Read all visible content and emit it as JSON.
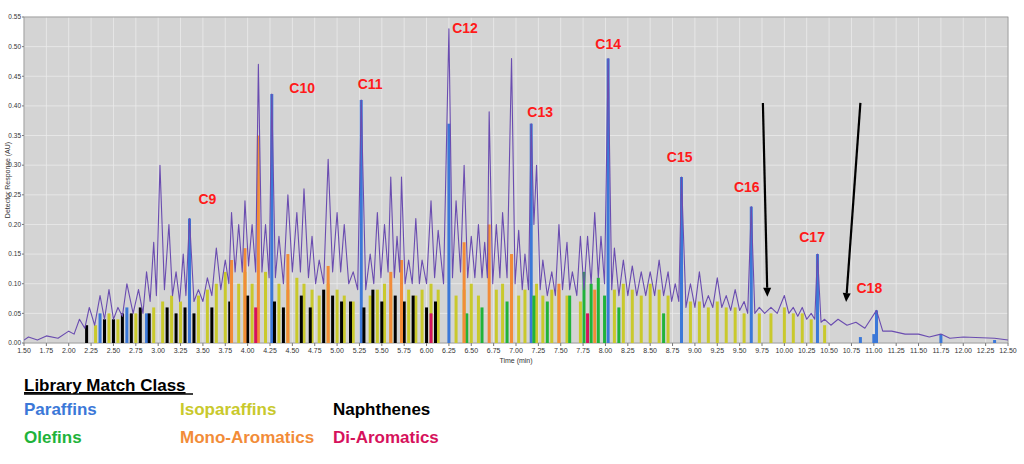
{
  "chart_data": {
    "type": "line",
    "x_label": "Time (min)",
    "y_label": "Detector Response (AU)",
    "xlim": [
      1.5,
      12.5
    ],
    "ylim": [
      0,
      0.55
    ],
    "xticks": [
      {
        "value": 1.5,
        "label": "1.50"
      },
      {
        "value": 1.75,
        "label": "1.75"
      },
      {
        "value": 2,
        "label": "2.00"
      },
      {
        "value": 2.25,
        "label": "2.25"
      },
      {
        "value": 2.5,
        "label": "2.50"
      },
      {
        "value": 2.75,
        "label": "2.75"
      },
      {
        "value": 3,
        "label": "3.00"
      },
      {
        "value": 3.25,
        "label": "3.25"
      },
      {
        "value": 3.5,
        "label": "3.50"
      },
      {
        "value": 3.75,
        "label": "3.75"
      },
      {
        "value": 4,
        "label": "4.00"
      },
      {
        "value": 4.25,
        "label": "4.25"
      },
      {
        "value": 4.5,
        "label": "4.50"
      },
      {
        "value": 4.75,
        "label": "4.75"
      },
      {
        "value": 5,
        "label": "5.00"
      },
      {
        "value": 5.25,
        "label": "5.25"
      },
      {
        "value": 5.5,
        "label": "5.50"
      },
      {
        "value": 5.75,
        "label": "5.75"
      },
      {
        "value": 6,
        "label": "6.00"
      },
      {
        "value": 6.25,
        "label": "6.25"
      },
      {
        "value": 6.5,
        "label": "6.50"
      },
      {
        "value": 6.75,
        "label": "6.75"
      },
      {
        "value": 7,
        "label": "7.00"
      },
      {
        "value": 7.25,
        "label": "7.25"
      },
      {
        "value": 7.5,
        "label": "7.50"
      },
      {
        "value": 7.75,
        "label": "7.75"
      },
      {
        "value": 8,
        "label": "8.00"
      },
      {
        "value": 8.25,
        "label": "8.25"
      },
      {
        "value": 8.5,
        "label": "8.50"
      },
      {
        "value": 8.75,
        "label": "8.75"
      },
      {
        "value": 9,
        "label": "9.00"
      },
      {
        "value": 9.25,
        "label": "9.25"
      },
      {
        "value": 9.5,
        "label": "9.50"
      },
      {
        "value": 9.75,
        "label": "9.75"
      },
      {
        "value": 10,
        "label": "10.00"
      },
      {
        "value": 10.25,
        "label": "10.25"
      },
      {
        "value": 10.5,
        "label": "10.50"
      },
      {
        "value": 10.75,
        "label": "10.75"
      },
      {
        "value": 11,
        "label": "11.00"
      },
      {
        "value": 11.25,
        "label": "11.25"
      },
      {
        "value": 11.5,
        "label": "11.50"
      },
      {
        "value": 11.75,
        "label": "11.75"
      },
      {
        "value": 12,
        "label": "12.00"
      },
      {
        "value": 12.25,
        "label": "12.25"
      },
      {
        "value": 12.5,
        "label": "12.50"
      }
    ],
    "yticks": [
      {
        "value": 0,
        "label": "0.00"
      },
      {
        "value": 0.05,
        "label": "0.05"
      },
      {
        "value": 0.1,
        "label": "0.10"
      },
      {
        "value": 0.15,
        "label": "0.15"
      },
      {
        "value": 0.2,
        "label": "0.20"
      },
      {
        "value": 0.25,
        "label": "0.25"
      },
      {
        "value": 0.3,
        "label": "0.30"
      },
      {
        "value": 0.35,
        "label": "0.35"
      },
      {
        "value": 0.4,
        "label": "0.40"
      },
      {
        "value": 0.45,
        "label": "0.45"
      },
      {
        "value": 0.5,
        "label": "0.50"
      },
      {
        "value": 0.55,
        "label": "0.55"
      }
    ],
    "grid": true,
    "legend": "bottom",
    "legend_title": "Library Match Class",
    "series": [
      {
        "type": "line",
        "color": "#6a4cb0",
        "x": [
          1.5,
          1.55,
          1.65,
          1.75,
          1.88,
          2.0,
          2.06,
          2.12,
          2.18,
          2.23,
          2.29,
          2.35,
          2.4,
          2.45,
          2.5,
          2.55,
          2.6,
          2.65,
          2.72,
          2.78,
          2.83,
          2.87,
          2.91,
          2.95,
          2.98,
          3.02,
          3.07,
          3.12,
          3.16,
          3.2,
          3.24,
          3.28,
          3.31,
          3.35,
          3.4,
          3.45,
          3.5,
          3.55,
          3.6,
          3.65,
          3.7,
          3.75,
          3.79,
          3.82,
          3.86,
          3.9,
          3.94,
          3.97,
          4.01,
          4.05,
          4.09,
          4.12,
          4.16,
          4.2,
          4.24,
          4.27,
          4.31,
          4.35,
          4.4,
          4.45,
          4.5,
          4.55,
          4.59,
          4.63,
          4.68,
          4.72,
          4.76,
          4.8,
          4.85,
          4.9,
          4.95,
          5.0,
          5.04,
          5.08,
          5.13,
          5.18,
          5.23,
          5.27,
          5.32,
          5.37,
          5.41,
          5.45,
          5.49,
          5.53,
          5.57,
          5.6,
          5.64,
          5.67,
          5.7,
          5.72,
          5.76,
          5.8,
          5.84,
          5.88,
          5.92,
          5.95,
          6.0,
          6.05,
          6.09,
          6.13,
          6.19,
          6.25,
          6.29,
          6.33,
          6.38,
          6.42,
          6.46,
          6.5,
          6.54,
          6.58,
          6.62,
          6.65,
          6.68,
          6.7,
          6.74,
          6.78,
          6.82,
          6.85,
          6.9,
          6.95,
          6.99,
          7.03,
          7.07,
          7.1,
          7.14,
          7.17,
          7.2,
          7.23,
          7.27,
          7.3,
          7.35,
          7.4,
          7.44,
          7.48,
          7.52,
          7.57,
          7.6,
          7.63,
          7.68,
          7.72,
          7.76,
          7.8,
          7.84,
          7.88,
          7.92,
          7.95,
          7.99,
          8.03,
          8.07,
          8.1,
          8.15,
          8.2,
          8.25,
          8.3,
          8.35,
          8.4,
          8.45,
          8.5,
          8.55,
          8.6,
          8.65,
          8.7,
          8.74,
          8.78,
          8.82,
          8.85,
          8.9,
          8.95,
          9.0,
          9.05,
          9.1,
          9.15,
          9.2,
          9.25,
          9.3,
          9.35,
          9.4,
          9.45,
          9.5,
          9.55,
          9.59,
          9.63,
          9.67,
          9.72,
          9.78,
          9.85,
          9.92,
          10.0,
          10.05,
          10.1,
          10.15,
          10.2,
          10.25,
          10.3,
          10.34,
          10.37,
          10.41,
          10.45,
          10.52,
          10.6,
          10.7,
          10.8,
          10.9,
          11.03,
          11.1,
          11.2,
          11.35,
          11.5,
          11.62,
          11.75,
          11.85,
          12.0,
          12.35,
          12.5
        ],
        "values": [
          0.005,
          0.01,
          0.005,
          0.012,
          0.008,
          0.02,
          0.015,
          0.04,
          0.025,
          0.06,
          0.03,
          0.08,
          0.04,
          0.09,
          0.04,
          0.06,
          0.045,
          0.1,
          0.05,
          0.09,
          0.05,
          0.12,
          0.07,
          0.17,
          0.08,
          0.3,
          0.09,
          0.2,
          0.08,
          0.12,
          0.07,
          0.15,
          0.08,
          0.21,
          0.07,
          0.09,
          0.07,
          0.11,
          0.08,
          0.16,
          0.09,
          0.14,
          0.1,
          0.22,
          0.12,
          0.2,
          0.12,
          0.24,
          0.13,
          0.2,
          0.12,
          0.47,
          0.12,
          0.2,
          0.11,
          0.42,
          0.11,
          0.18,
          0.1,
          0.25,
          0.12,
          0.22,
          0.12,
          0.26,
          0.11,
          0.18,
          0.1,
          0.14,
          0.1,
          0.31,
          0.12,
          0.22,
          0.12,
          0.2,
          0.1,
          0.12,
          0.09,
          0.41,
          0.09,
          0.15,
          0.1,
          0.22,
          0.11,
          0.2,
          0.12,
          0.28,
          0.11,
          0.18,
          0.12,
          0.28,
          0.1,
          0.14,
          0.1,
          0.21,
          0.1,
          0.14,
          0.1,
          0.24,
          0.11,
          0.19,
          0.1,
          0.53,
          0.11,
          0.24,
          0.12,
          0.3,
          0.11,
          0.18,
          0.11,
          0.2,
          0.11,
          0.17,
          0.11,
          0.39,
          0.1,
          0.2,
          0.11,
          0.22,
          0.11,
          0.48,
          0.1,
          0.19,
          0.09,
          0.15,
          0.09,
          0.37,
          0.2,
          0.3,
          0.09,
          0.14,
          0.08,
          0.12,
          0.08,
          0.2,
          0.09,
          0.17,
          0.09,
          0.12,
          0.08,
          0.18,
          0.09,
          0.18,
          0.1,
          0.22,
          0.11,
          0.18,
          0.1,
          0.48,
          0.09,
          0.16,
          0.08,
          0.14,
          0.08,
          0.13,
          0.08,
          0.12,
          0.08,
          0.12,
          0.08,
          0.14,
          0.08,
          0.12,
          0.07,
          0.1,
          0.07,
          0.28,
          0.06,
          0.1,
          0.06,
          0.12,
          0.06,
          0.08,
          0.06,
          0.11,
          0.06,
          0.08,
          0.055,
          0.09,
          0.055,
          0.07,
          0.05,
          0.23,
          0.05,
          0.06,
          0.05,
          0.06,
          0.05,
          0.08,
          0.05,
          0.06,
          0.045,
          0.06,
          0.04,
          0.05,
          0.04,
          0.15,
          0.035,
          0.04,
          0.03,
          0.04,
          0.03,
          0.035,
          0.025,
          0.055,
          0.02,
          0.02,
          0.015,
          0.015,
          0.01,
          0.015,
          0.008,
          0.01,
          0.008,
          0.005
        ]
      },
      {
        "name": "Paraffins",
        "type": "bar",
        "color": "#3b78d8",
        "x": [
          2.35,
          2.65,
          2.87,
          3.35,
          4.27,
          5.27,
          6.25,
          7.17,
          8.03,
          8.85,
          9.63,
          10.37,
          10.85,
          11.0,
          11.03,
          11.75,
          12.35
        ],
        "values": [
          0.05,
          0.06,
          0.05,
          0.21,
          0.42,
          0.41,
          0.37,
          0.37,
          0.48,
          0.28,
          0.23,
          0.15,
          0.01,
          0.015,
          0.055,
          0.015,
          0.005
        ]
      },
      {
        "name": "Isoparaffins",
        "type": "bar",
        "color": "#c9c92c",
        "x": [
          2.3,
          2.45,
          2.55,
          2.75,
          2.95,
          3.05,
          3.15,
          3.25,
          3.45,
          3.55,
          3.65,
          3.75,
          3.9,
          3.97,
          4.05,
          4.2,
          4.35,
          4.45,
          4.55,
          4.63,
          4.72,
          4.8,
          4.9,
          5.0,
          5.08,
          5.18,
          5.37,
          5.45,
          5.53,
          5.6,
          5.72,
          5.8,
          5.88,
          5.95,
          6.05,
          6.13,
          6.33,
          6.42,
          6.5,
          6.58,
          6.78,
          6.85,
          7.03,
          7.1,
          7.23,
          7.3,
          7.4,
          7.48,
          7.57,
          7.72,
          8.1,
          8.2,
          8.3,
          8.4,
          8.5,
          8.6,
          8.7,
          8.95,
          9.05,
          9.15,
          9.25,
          9.35,
          9.45,
          9.55,
          9.72,
          9.85,
          10.0,
          10.1,
          10.2,
          10.3,
          10.45
        ],
        "values": [
          0.03,
          0.05,
          0.04,
          0.05,
          0.06,
          0.07,
          0.08,
          0.07,
          0.08,
          0.09,
          0.1,
          0.12,
          0.1,
          0.12,
          0.1,
          0.12,
          0.1,
          0.09,
          0.11,
          0.1,
          0.09,
          0.08,
          0.1,
          0.09,
          0.08,
          0.07,
          0.08,
          0.09,
          0.1,
          0.09,
          0.08,
          0.09,
          0.08,
          0.09,
          0.1,
          0.09,
          0.08,
          0.09,
          0.1,
          0.08,
          0.09,
          0.1,
          0.08,
          0.09,
          0.1,
          0.08,
          0.09,
          0.09,
          0.08,
          0.07,
          0.09,
          0.1,
          0.09,
          0.08,
          0.1,
          0.09,
          0.08,
          0.07,
          0.07,
          0.06,
          0.07,
          0.06,
          0.06,
          0.05,
          0.05,
          0.05,
          0.06,
          0.05,
          0.05,
          0.04,
          0.03
        ]
      },
      {
        "name": "Naphthenes",
        "type": "bar",
        "color": "#000000",
        "x": [
          2.2,
          2.4,
          2.5,
          2.6,
          2.7,
          2.8,
          2.9,
          3.1,
          3.2,
          3.3,
          3.4,
          3.6,
          3.8,
          4.0,
          4.3,
          4.4,
          4.6,
          4.7,
          4.85,
          4.95,
          5.05,
          5.15,
          5.3,
          5.4,
          5.5,
          5.65,
          5.75,
          5.85,
          6.0,
          6.1
        ],
        "values": [
          0.03,
          0.04,
          0.04,
          0.05,
          0.05,
          0.06,
          0.05,
          0.06,
          0.05,
          0.06,
          0.05,
          0.06,
          0.07,
          0.08,
          0.07,
          0.06,
          0.08,
          0.06,
          0.09,
          0.08,
          0.07,
          0.07,
          0.06,
          0.09,
          0.07,
          0.08,
          0.07,
          0.08,
          0.06,
          0.07
        ]
      },
      {
        "name": "Olefins",
        "type": "bar",
        "color": "#21b33a",
        "x": [
          6.45,
          6.62,
          6.9,
          7.2,
          7.35,
          7.6,
          7.76,
          7.84,
          7.92,
          7.99,
          8.15,
          8.65
        ],
        "values": [
          0.05,
          0.06,
          0.07,
          0.08,
          0.07,
          0.08,
          0.12,
          0.1,
          0.11,
          0.08,
          0.06,
          0.05
        ]
      },
      {
        "name": "Mono-Aromatics",
        "type": "bar",
        "color": "#f28c38",
        "x": [
          3.82,
          3.97,
          4.12,
          4.45,
          4.9,
          5.6,
          5.72,
          6.42,
          6.7,
          6.95,
          7.48,
          7.88
        ],
        "values": [
          0.14,
          0.16,
          0.35,
          0.15,
          0.13,
          0.12,
          0.14,
          0.17,
          0.2,
          0.15,
          0.1,
          0.09
        ]
      },
      {
        "name": "Di-Aromatics",
        "type": "bar",
        "color": "#d6125c",
        "x": [
          4.09,
          6.05,
          7.8
        ],
        "values": [
          0.06,
          0.05,
          0.05
        ]
      }
    ],
    "annotations": [
      {
        "text": "C9",
        "x": 3.55,
        "y": 0.243
      },
      {
        "text": "C10",
        "x": 4.61,
        "y": 0.43
      },
      {
        "text": "C11",
        "x": 5.37,
        "y": 0.437
      },
      {
        "text": "C12",
        "x": 6.43,
        "y": 0.531
      },
      {
        "text": "C13",
        "x": 7.27,
        "y": 0.39
      },
      {
        "text": "C14",
        "x": 8.03,
        "y": 0.504
      },
      {
        "text": "C15",
        "x": 8.83,
        "y": 0.314
      },
      {
        "text": "C16",
        "x": 9.58,
        "y": 0.263
      },
      {
        "text": "C17",
        "x": 10.31,
        "y": 0.179
      },
      {
        "text": "C18",
        "x": 10.95,
        "y": 0.093
      }
    ],
    "arrows": [
      {
        "x": [
          9.76,
          9.81
        ],
        "y": [
          0.405,
          0.078
        ]
      },
      {
        "x": [
          10.85,
          10.69
        ],
        "y": [
          0.405,
          0.069
        ]
      }
    ]
  }
}
